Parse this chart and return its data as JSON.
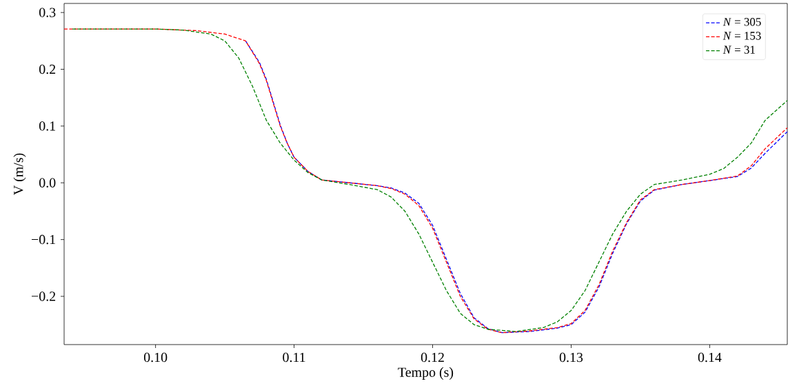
{
  "chart_data": {
    "type": "line",
    "xlabel": "Tempo (s)",
    "ylabel": "V (m/s)",
    "xlim": [
      0.0934,
      0.1456
    ],
    "ylim": [
      -0.285,
      0.316
    ],
    "xticks": [
      {
        "value": 0.1,
        "label": "0.10"
      },
      {
        "value": 0.11,
        "label": "0.11"
      },
      {
        "value": 0.12,
        "label": "0.12"
      },
      {
        "value": 0.13,
        "label": "0.13"
      },
      {
        "value": 0.14,
        "label": "0.14"
      }
    ],
    "yticks": [
      {
        "value": -0.2,
        "label": "−0.2"
      },
      {
        "value": -0.1,
        "label": "−0.1"
      },
      {
        "value": 0.0,
        "label": "0.0"
      },
      {
        "value": 0.1,
        "label": "0.1"
      },
      {
        "value": 0.2,
        "label": "0.2"
      },
      {
        "value": 0.3,
        "label": "0.3"
      }
    ],
    "legend": "top right",
    "grid": false,
    "line_style": "dashed",
    "x": [
      0.0934,
      0.1,
      0.103,
      0.105,
      0.1065,
      0.1075,
      0.108,
      0.1085,
      0.109,
      0.1095,
      0.11,
      0.111,
      0.112,
      0.114,
      0.116,
      0.117,
      0.118,
      0.119,
      0.12,
      0.121,
      0.122,
      0.123,
      0.124,
      0.125,
      0.127,
      0.129,
      0.13,
      0.131,
      0.132,
      0.133,
      0.134,
      0.135,
      0.136,
      0.138,
      0.14,
      0.142,
      0.143,
      0.144,
      0.1456
    ],
    "series": [
      {
        "name": "*N* = 305",
        "color": "#0000ff",
        "values": [
          null,
          null,
          null,
          null,
          0.25,
          0.212,
          0.182,
          0.142,
          0.102,
          0.07,
          0.045,
          0.02,
          0.005,
          0.0,
          -0.005,
          -0.009,
          -0.018,
          -0.036,
          -0.075,
          -0.135,
          -0.195,
          -0.238,
          -0.257,
          -0.264,
          -0.262,
          -0.256,
          -0.25,
          -0.228,
          -0.184,
          -0.124,
          -0.072,
          -0.032,
          -0.013,
          -0.003,
          0.004,
          0.011,
          0.026,
          0.052,
          0.09
        ]
      },
      {
        "name": "*N* = 153",
        "color": "#ff0000",
        "values": [
          0.271,
          0.271,
          0.268,
          0.262,
          0.25,
          0.21,
          0.18,
          0.14,
          0.1,
          0.07,
          0.045,
          0.02,
          0.005,
          0.0,
          -0.005,
          -0.01,
          -0.02,
          -0.04,
          -0.08,
          -0.14,
          -0.2,
          -0.24,
          -0.258,
          -0.264,
          -0.261,
          -0.255,
          -0.248,
          -0.225,
          -0.18,
          -0.12,
          -0.07,
          -0.03,
          -0.012,
          -0.003,
          0.004,
          0.012,
          0.03,
          0.06,
          0.097
        ]
      },
      {
        "name": "*N* = 31",
        "color": "#008000",
        "x": [
          0.094,
          0.1,
          0.102,
          0.104,
          0.105,
          0.106,
          0.107,
          0.108,
          0.109,
          0.11,
          0.111,
          0.112,
          0.114,
          0.116,
          0.117,
          0.118,
          0.119,
          0.12,
          0.121,
          0.122,
          0.123,
          0.124,
          0.126,
          0.128,
          0.129,
          0.13,
          0.131,
          0.132,
          0.133,
          0.134,
          0.135,
          0.136,
          0.138,
          0.14,
          0.141,
          0.142,
          0.143,
          0.144,
          0.1456
        ],
        "values": [
          0.271,
          0.271,
          0.269,
          0.262,
          0.25,
          0.22,
          0.17,
          0.11,
          0.07,
          0.04,
          0.018,
          0.005,
          -0.003,
          -0.012,
          -0.025,
          -0.05,
          -0.09,
          -0.14,
          -0.19,
          -0.23,
          -0.25,
          -0.258,
          -0.262,
          -0.255,
          -0.245,
          -0.225,
          -0.19,
          -0.14,
          -0.09,
          -0.05,
          -0.02,
          -0.003,
          0.005,
          0.015,
          0.025,
          0.045,
          0.07,
          0.11,
          0.145
        ]
      }
    ]
  }
}
